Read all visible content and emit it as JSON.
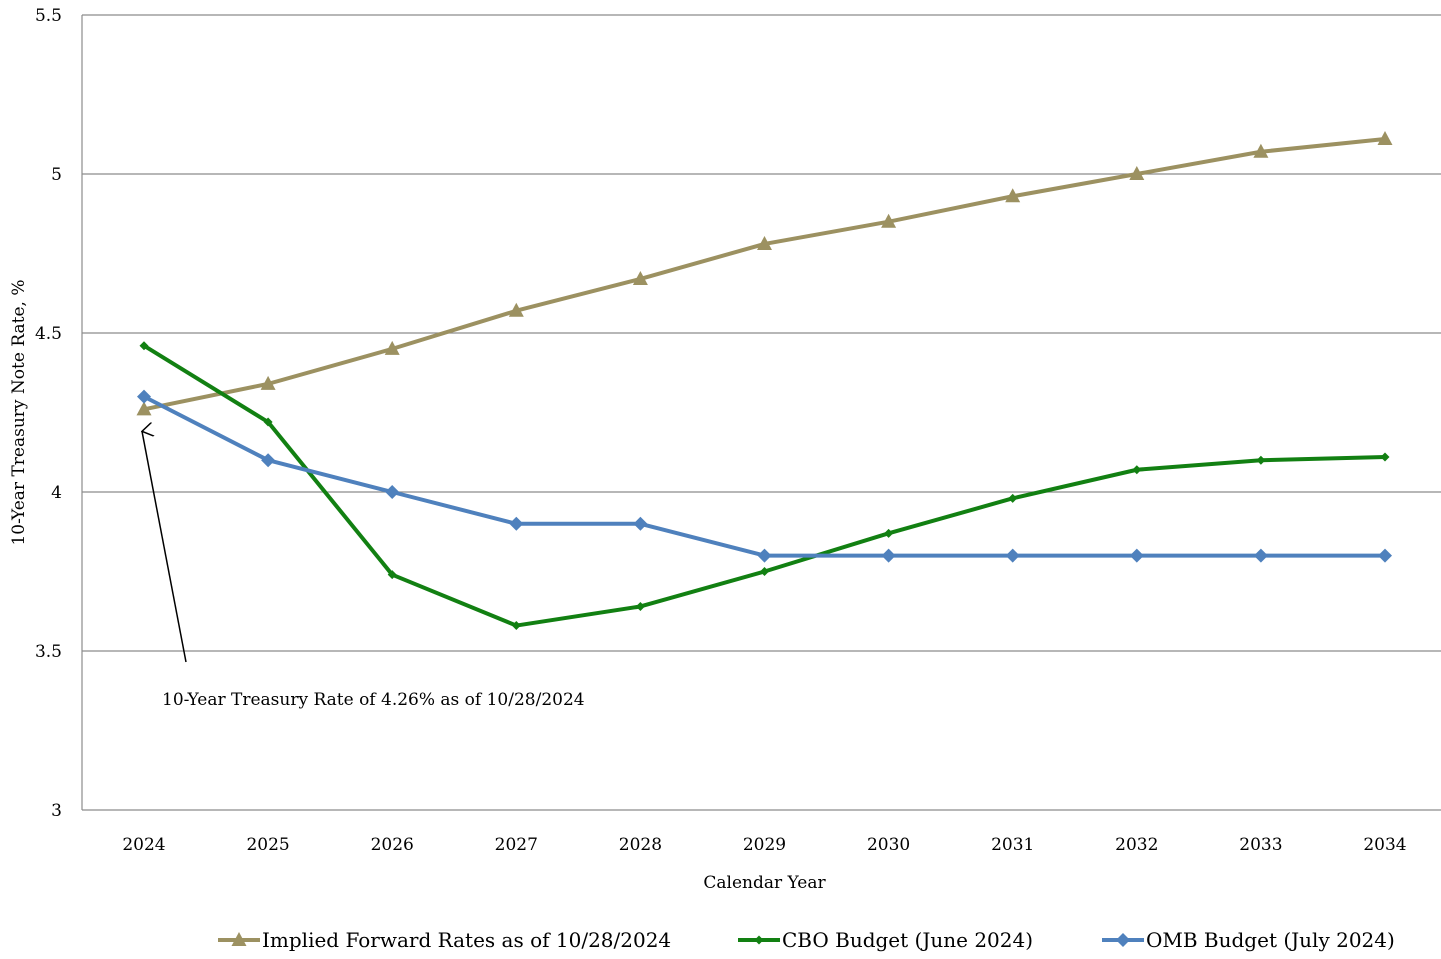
{
  "chart_data": {
    "type": "line",
    "xlabel": "Calendar Year",
    "ylabel": "10-Year Treasury Note Rate, %",
    "ylim": [
      3,
      5.5
    ],
    "yticks": [
      "3",
      "3.5",
      "4",
      "4.5",
      "5",
      "5.5"
    ],
    "categories": [
      "2024",
      "2025",
      "2026",
      "2027",
      "2028",
      "2029",
      "2030",
      "2031",
      "2032",
      "2033",
      "2034"
    ],
    "grid": true,
    "legend_position": "bottom",
    "series": [
      {
        "name": "Implied Forward Rates as of 10/28/2024",
        "color": "#9c9161",
        "marker": "triangle",
        "values": [
          4.26,
          4.34,
          4.45,
          4.57,
          4.67,
          4.78,
          4.85,
          4.93,
          5.0,
          5.07,
          5.11
        ]
      },
      {
        "name": "CBO Budget (June 2024)",
        "color": "#128012",
        "marker": "small-diamond",
        "values": [
          4.46,
          4.22,
          3.74,
          3.58,
          3.64,
          3.75,
          3.87,
          3.98,
          4.07,
          4.1,
          4.11
        ]
      },
      {
        "name": "OMB Budget (July 2024)",
        "color": "#4f81bd",
        "marker": "diamond",
        "values": [
          4.3,
          4.1,
          4.0,
          3.9,
          3.9,
          3.8,
          3.8,
          3.8,
          3.8,
          3.8,
          3.8
        ]
      }
    ],
    "annotation": {
      "text": "10-Year Treasury Rate of 4.26% as of 10/28/2024",
      "points_to": {
        "category": "2024",
        "value": 4.26
      }
    }
  }
}
